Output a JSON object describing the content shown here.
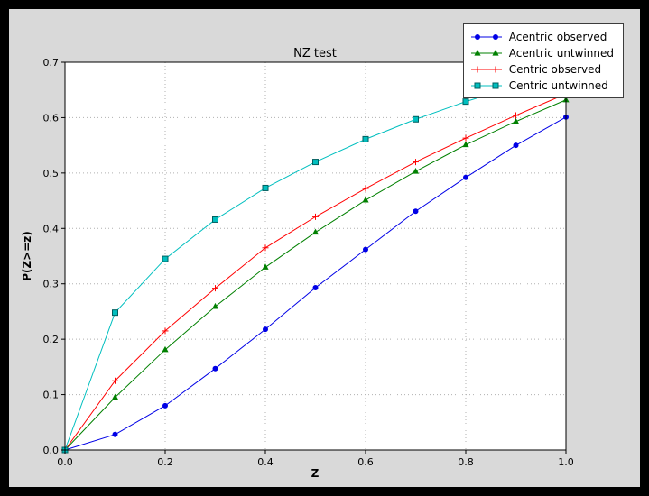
{
  "figure": {
    "outer_background": "#000000",
    "background": "#d9d9d9",
    "plot_background": "#ffffff",
    "grid_color": "#b0b0b0",
    "axes_color": "#000000"
  },
  "chart_data": {
    "type": "line",
    "title": "NZ test",
    "xlabel": "Z",
    "ylabel": "P(Z>=z)",
    "xlim": [
      0.0,
      1.0
    ],
    "ylim": [
      0.0,
      0.7
    ],
    "grid": true,
    "legend_position": "top-right",
    "x_ticks": [
      0.0,
      0.2,
      0.4,
      0.6,
      0.8,
      1.0
    ],
    "x_tick_labels": [
      "0.0",
      "0.2",
      "0.4",
      "0.6",
      "0.8",
      "1.0"
    ],
    "y_ticks": [
      0.0,
      0.1,
      0.2,
      0.3,
      0.4,
      0.5,
      0.6,
      0.7
    ],
    "y_tick_labels": [
      "0.0",
      "0.1",
      "0.2",
      "0.3",
      "0.4",
      "0.5",
      "0.6",
      "0.7"
    ],
    "x": [
      0.0,
      0.1,
      0.2,
      0.3,
      0.4,
      0.5,
      0.6,
      0.7,
      0.8,
      0.9,
      1.0
    ],
    "series": [
      {
        "name": "Acentric observed",
        "color": "#0000e6",
        "marker": "circle",
        "values": [
          0.0,
          0.028,
          0.08,
          0.147,
          0.218,
          0.293,
          0.362,
          0.431,
          0.492,
          0.55,
          0.601
        ]
      },
      {
        "name": "Acentric untwinned",
        "color": "#008000",
        "marker": "triangle",
        "values": [
          0.0,
          0.095,
          0.181,
          0.259,
          0.33,
          0.393,
          0.451,
          0.503,
          0.551,
          0.593,
          0.632
        ]
      },
      {
        "name": "Centric observed",
        "color": "#ff0000",
        "marker": "plus",
        "values": [
          0.0,
          0.125,
          0.215,
          0.292,
          0.365,
          0.421,
          0.472,
          0.52,
          0.563,
          0.604,
          0.643
        ]
      },
      {
        "name": "Centric untwinned",
        "color": "#00bfbf",
        "marker": "square",
        "values": [
          0.0,
          0.248,
          0.345,
          0.416,
          0.473,
          0.52,
          0.561,
          0.597,
          0.629,
          0.657,
          0.683
        ]
      }
    ]
  }
}
